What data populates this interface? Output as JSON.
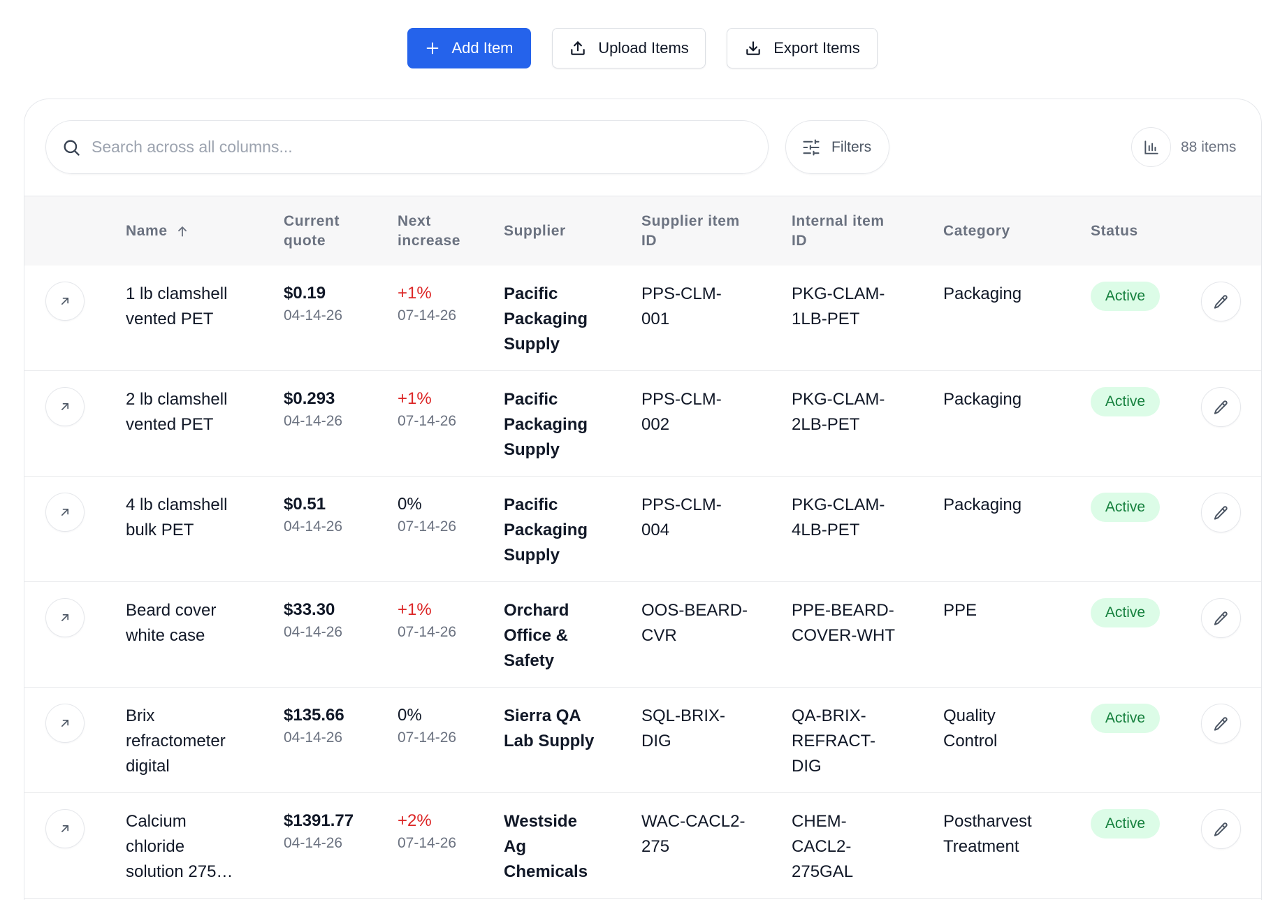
{
  "toolbar": {
    "add_item": "Add Item",
    "upload_items": "Upload Items",
    "export_items": "Export Items"
  },
  "search": {
    "placeholder": "Search across all columns..."
  },
  "filters": {
    "label": "Filters"
  },
  "summary": {
    "item_count": "88 items"
  },
  "table": {
    "columns": {
      "name": "Name",
      "current_quote": "Current quote",
      "next_increase": "Next increase",
      "supplier": "Supplier",
      "supplier_item_id": "Supplier item ID",
      "internal_item_id": "Internal item ID",
      "category": "Category",
      "status": "Status"
    },
    "rows": [
      {
        "name": "1 lb clamshell vented PET",
        "current_quote": "$0.19",
        "current_quote_date": "04-14-26",
        "next_increase": "+1%",
        "next_increase_date": "07-14-26",
        "supplier": "Pacific Packaging Supply",
        "supplier_item_id": "PPS-CLM-001",
        "internal_item_id": "PKG-CLAM-1LB-PET",
        "category": "Packaging",
        "status": "Active"
      },
      {
        "name": "2 lb clamshell vented PET",
        "current_quote": "$0.293",
        "current_quote_date": "04-14-26",
        "next_increase": "+1%",
        "next_increase_date": "07-14-26",
        "supplier": "Pacific Packaging Supply",
        "supplier_item_id": "PPS-CLM-002",
        "internal_item_id": "PKG-CLAM-2LB-PET",
        "category": "Packaging",
        "status": "Active"
      },
      {
        "name": "4 lb clamshell bulk PET",
        "current_quote": "$0.51",
        "current_quote_date": "04-14-26",
        "next_increase": "0%",
        "next_increase_date": "07-14-26",
        "supplier": "Pacific Packaging Supply",
        "supplier_item_id": "PPS-CLM-004",
        "internal_item_id": "PKG-CLAM-4LB-PET",
        "category": "Packaging",
        "status": "Active"
      },
      {
        "name": "Beard cover white case",
        "current_quote": "$33.30",
        "current_quote_date": "04-14-26",
        "next_increase": "+1%",
        "next_increase_date": "07-14-26",
        "supplier": "Orchard Office & Safety",
        "supplier_item_id": "OOS-BEARD-CVR",
        "internal_item_id": "PPE-BEARD-COVER-WHT",
        "category": "PPE",
        "status": "Active"
      },
      {
        "name": "Brix refractometer digital",
        "current_quote": "$135.66",
        "current_quote_date": "04-14-26",
        "next_increase": "0%",
        "next_increase_date": "07-14-26",
        "supplier": "Sierra QA Lab Supply",
        "supplier_item_id": "SQL-BRIX-DIG",
        "internal_item_id": "QA-BRIX-REFRACT-DIG",
        "category": "Quality Control",
        "status": "Active"
      },
      {
        "name": "Calcium chloride solution 275…",
        "current_quote": "$1391.77",
        "current_quote_date": "04-14-26",
        "next_increase": "+2%",
        "next_increase_date": "07-14-26",
        "supplier": "Westside Ag Chemicals",
        "supplier_item_id": "WAC-CACL2-275",
        "internal_item_id": "CHEM-CACL2-275GAL",
        "category": "Postharvest Treatment",
        "status": "Active"
      }
    ]
  },
  "icons": {
    "add_item": "plus-icon",
    "upload_items": "upload-icon",
    "export_items": "download-icon",
    "search": "search-icon",
    "filters": "sliders-icon",
    "item_count": "bar-chart-icon",
    "name_sort": "arrow-up-icon",
    "open_row": "arrow-up-right-icon",
    "edit_row": "pencil-icon"
  },
  "colors": {
    "primary": "#2563eb",
    "text": "#111827",
    "muted": "#6b7280",
    "placeholder": "#9ca3af",
    "border": "#e5e7eb",
    "header_bg": "#f7f7f8",
    "increase": "#dc2626",
    "status_active_bg": "#dcfce7",
    "status_active_text": "#15803d"
  }
}
